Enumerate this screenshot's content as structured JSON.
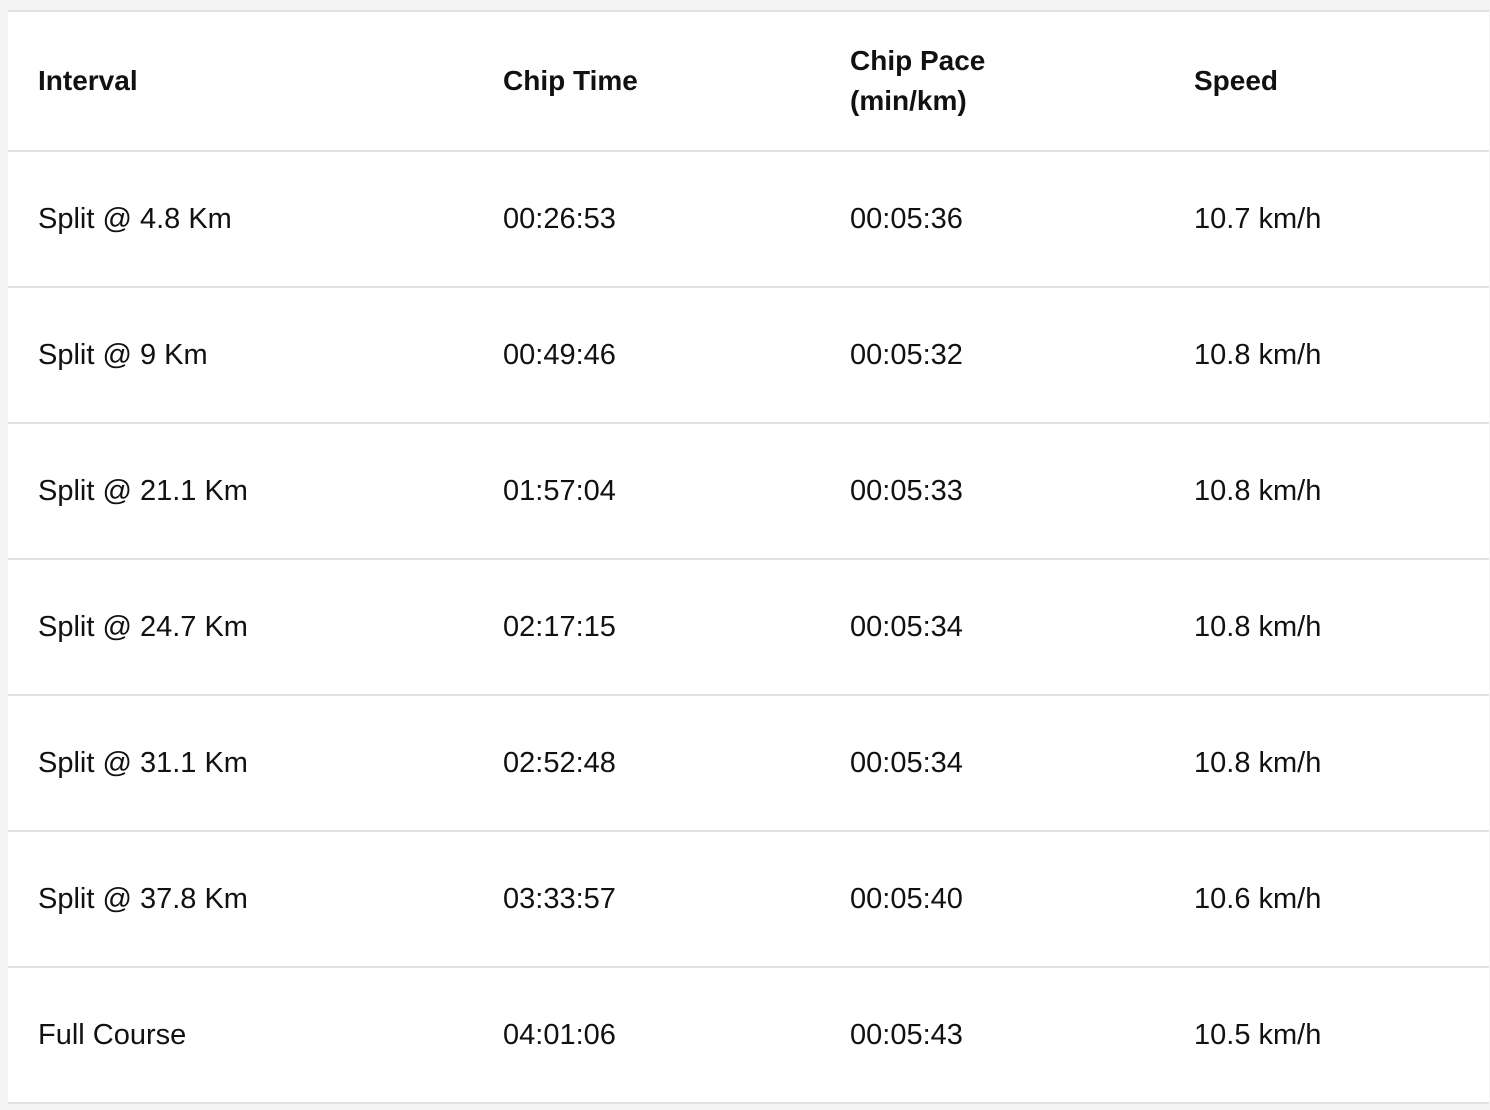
{
  "splits_table": {
    "headers": [
      "Interval",
      "Chip Time",
      "Chip Pace (min/km)",
      "Speed"
    ],
    "rows": [
      [
        "Split @ 4.8 Km",
        "00:26:53",
        "00:05:36",
        "10.7 km/h"
      ],
      [
        "Split @ 9 Km",
        "00:49:46",
        "00:05:32",
        "10.8 km/h"
      ],
      [
        "Split @ 21.1 Km",
        "01:57:04",
        "00:05:33",
        "10.8 km/h"
      ],
      [
        "Split @ 24.7 Km",
        "02:17:15",
        "00:05:34",
        "10.8 km/h"
      ],
      [
        "Split @ 31.1 Km",
        "02:52:48",
        "00:05:34",
        "10.8 km/h"
      ],
      [
        "Split @ 37.8 Km",
        "03:33:57",
        "00:05:40",
        "10.6 km/h"
      ],
      [
        "Full Course",
        "04:01:06",
        "00:05:43",
        "10.5 km/h"
      ]
    ]
  }
}
